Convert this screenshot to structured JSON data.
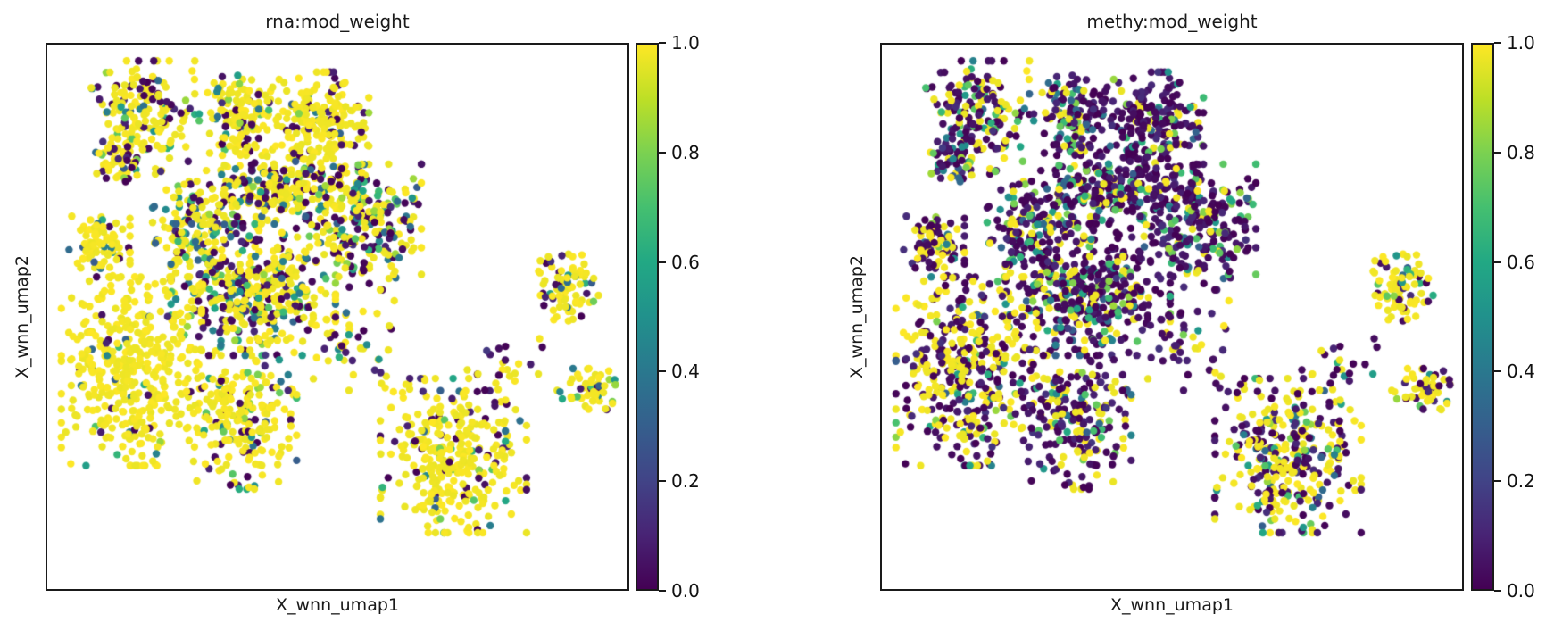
{
  "figure": {
    "background": "#ffffff",
    "text_color": "#1a1a1a",
    "spine_color": "#1a1a1a",
    "panels": [
      {
        "title": "rna:mod_weight",
        "xlabel": "X_wnn_umap1",
        "ylabel": "X_wnn_umap2"
      },
      {
        "title": "methy:mod_weight",
        "xlabel": "X_wnn_umap1",
        "ylabel": "X_wnn_umap2"
      }
    ]
  },
  "chart_data": {
    "type": "scatter",
    "embedding": "X_wnn_umap",
    "colormap": "viridis",
    "value_range": [
      0,
      1
    ],
    "marker_diameter_px": 8.4,
    "grid": false,
    "axis_ticks": "none",
    "colorbar": {
      "position": "right",
      "tick_labels_top_to_bottom": [
        "1.0",
        "0.8",
        "0.6",
        "0.4",
        "0.2",
        "0.0"
      ],
      "tick_values_top_to_bottom": [
        1.0,
        0.8,
        0.6,
        0.4,
        0.2,
        0.0
      ]
    },
    "viridis_stops": [
      [
        0.0,
        "#440154"
      ],
      [
        0.1,
        "#482475"
      ],
      [
        0.2,
        "#414487"
      ],
      [
        0.3,
        "#355f8d"
      ],
      [
        0.4,
        "#2a788e"
      ],
      [
        0.5,
        "#21918c"
      ],
      [
        0.6,
        "#22a884"
      ],
      [
        0.7,
        "#44bf70"
      ],
      [
        0.8,
        "#7ad151"
      ],
      [
        0.9,
        "#bddf26"
      ],
      [
        1.0,
        "#fde725"
      ]
    ],
    "panels": [
      {
        "id": "rna",
        "title": "rna:mod_weight",
        "value_key": "rna"
      },
      {
        "id": "methy",
        "title": "methy:mod_weight",
        "value_key": "methy"
      }
    ],
    "clusters": [
      {
        "name": "top-left",
        "cx": 0.165,
        "cy": 0.135,
        "rx": 0.085,
        "ry": 0.1,
        "n": 170,
        "rna": {
          "high": 0.62,
          "mid": 0.18,
          "low": 0.2
        },
        "methy": {
          "high": 0.28,
          "mid": 0.17,
          "low": 0.55
        }
      },
      {
        "name": "top-left-appendage",
        "cx": 0.115,
        "cy": 0.215,
        "rx": 0.035,
        "ry": 0.035,
        "n": 40,
        "rna": {
          "high": 0.45,
          "mid": 0.3,
          "low": 0.25
        },
        "methy": {
          "high": 0.15,
          "mid": 0.3,
          "low": 0.55
        }
      },
      {
        "name": "top-center-left",
        "cx": 0.33,
        "cy": 0.13,
        "rx": 0.065,
        "ry": 0.07,
        "n": 140,
        "rna": {
          "high": 0.72,
          "mid": 0.13,
          "low": 0.15
        },
        "methy": {
          "high": 0.15,
          "mid": 0.25,
          "low": 0.6
        }
      },
      {
        "name": "top-center-right",
        "cx": 0.465,
        "cy": 0.145,
        "rx": 0.085,
        "ry": 0.09,
        "n": 210,
        "rna": {
          "high": 0.8,
          "mid": 0.08,
          "low": 0.12
        },
        "methy": {
          "high": 0.06,
          "mid": 0.16,
          "low": 0.78
        }
      },
      {
        "name": "upper-mid-band",
        "cx": 0.4,
        "cy": 0.265,
        "rx": 0.13,
        "ry": 0.075,
        "n": 230,
        "rna": {
          "high": 0.6,
          "mid": 0.18,
          "low": 0.22
        },
        "methy": {
          "high": 0.12,
          "mid": 0.23,
          "low": 0.65
        }
      },
      {
        "name": "center-left-arm",
        "cx": 0.255,
        "cy": 0.335,
        "rx": 0.07,
        "ry": 0.08,
        "n": 130,
        "rna": {
          "high": 0.62,
          "mid": 0.2,
          "low": 0.18
        },
        "methy": {
          "high": 0.18,
          "mid": 0.24,
          "low": 0.58
        }
      },
      {
        "name": "center",
        "cx": 0.355,
        "cy": 0.45,
        "rx": 0.135,
        "ry": 0.115,
        "n": 420,
        "rna": {
          "high": 0.46,
          "mid": 0.24,
          "low": 0.3
        },
        "methy": {
          "high": 0.2,
          "mid": 0.22,
          "low": 0.58
        }
      },
      {
        "name": "right-lobe",
        "cx": 0.545,
        "cy": 0.335,
        "rx": 0.095,
        "ry": 0.11,
        "n": 230,
        "rna": {
          "high": 0.42,
          "mid": 0.3,
          "low": 0.28
        },
        "methy": {
          "high": 0.1,
          "mid": 0.22,
          "low": 0.68
        }
      },
      {
        "name": "left-small",
        "cx": 0.09,
        "cy": 0.37,
        "rx": 0.05,
        "ry": 0.055,
        "n": 90,
        "rna": {
          "high": 0.88,
          "mid": 0.06,
          "low": 0.06
        },
        "methy": {
          "high": 0.38,
          "mid": 0.12,
          "low": 0.5
        }
      },
      {
        "name": "bottom-left",
        "cx": 0.145,
        "cy": 0.6,
        "rx": 0.115,
        "ry": 0.165,
        "n": 400,
        "rna": {
          "high": 0.9,
          "mid": 0.06,
          "low": 0.04
        },
        "methy": {
          "high": 0.42,
          "mid": 0.12,
          "low": 0.46
        }
      },
      {
        "name": "bottom-center",
        "cx": 0.33,
        "cy": 0.68,
        "rx": 0.095,
        "ry": 0.13,
        "n": 230,
        "rna": {
          "high": 0.74,
          "mid": 0.11,
          "low": 0.15
        },
        "methy": {
          "high": 0.25,
          "mid": 0.15,
          "low": 0.6
        }
      },
      {
        "name": "far-right-upper",
        "cx": 0.893,
        "cy": 0.45,
        "rx": 0.058,
        "ry": 0.062,
        "n": 80,
        "rna": {
          "high": 0.74,
          "mid": 0.13,
          "low": 0.13
        },
        "methy": {
          "high": 0.72,
          "mid": 0.12,
          "low": 0.16
        }
      },
      {
        "name": "far-right-lower",
        "cx": 0.93,
        "cy": 0.635,
        "rx": 0.062,
        "ry": 0.038,
        "n": 55,
        "rna": {
          "high": 0.68,
          "mid": 0.16,
          "low": 0.16
        },
        "methy": {
          "high": 0.58,
          "mid": 0.16,
          "low": 0.26
        }
      },
      {
        "name": "bottom-right",
        "cx": 0.7,
        "cy": 0.755,
        "rx": 0.12,
        "ry": 0.135,
        "n": 330,
        "rna": {
          "high": 0.81,
          "mid": 0.08,
          "low": 0.11
        },
        "methy": {
          "high": 0.44,
          "mid": 0.15,
          "low": 0.41
        }
      },
      {
        "name": "center-bridge",
        "cx": 0.52,
        "cy": 0.565,
        "rx": 0.1,
        "ry": 0.09,
        "n": 45,
        "rna": {
          "high": 0.45,
          "mid": 0.25,
          "low": 0.3
        },
        "methy": {
          "high": 0.15,
          "mid": 0.15,
          "low": 0.7
        }
      },
      {
        "name": "right-trail",
        "cx": 0.785,
        "cy": 0.59,
        "rx": 0.065,
        "ry": 0.06,
        "n": 25,
        "rna": {
          "high": 0.55,
          "mid": 0.2,
          "low": 0.25
        },
        "methy": {
          "high": 0.3,
          "mid": 0.15,
          "low": 0.55
        }
      }
    ]
  }
}
